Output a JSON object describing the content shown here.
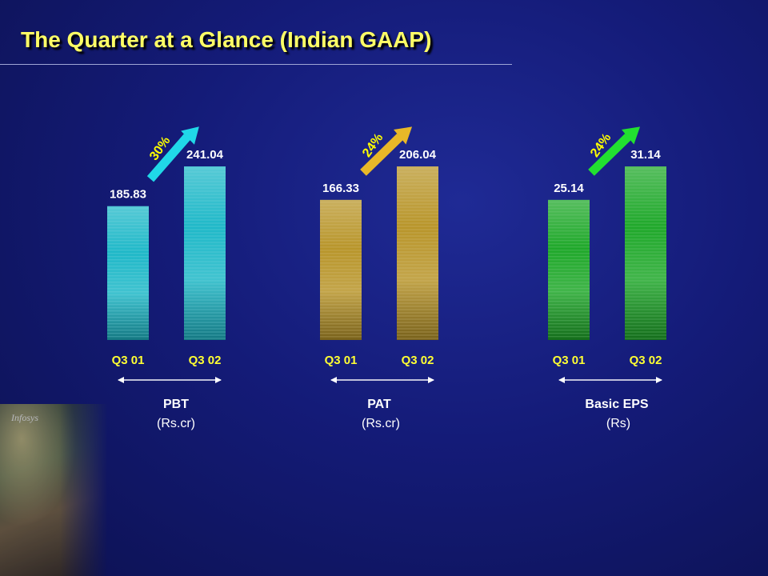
{
  "title": "The Quarter at a Glance (Indian GAAP)",
  "photo": {
    "logo_text": "Infosys"
  },
  "chart_data": [
    {
      "type": "bar",
      "metric": "PBT",
      "unit": "(Rs.cr)",
      "categories": [
        "Q3 01",
        "Q3 02"
      ],
      "values": [
        185.83,
        241.04
      ],
      "value_labels": [
        "185.83",
        "241.04"
      ],
      "growth": "30%",
      "bar_color": "#1fb8c8",
      "arrow_color": "#20d8e8",
      "growth_color": "#ffff00"
    },
    {
      "type": "bar",
      "metric": "PAT",
      "unit": "(Rs.cr)",
      "categories": [
        "Q3 01",
        "Q3 02"
      ],
      "values": [
        166.33,
        206.04
      ],
      "value_labels": [
        "166.33",
        "206.04"
      ],
      "growth": "24%",
      "bar_color": "#b8952a",
      "arrow_color": "#e8b828",
      "growth_color": "#ffff00"
    },
    {
      "type": "bar",
      "metric": "Basic EPS",
      "unit": "(Rs)",
      "categories": [
        "Q3 01",
        "Q3 02"
      ],
      "values": [
        25.14,
        31.14
      ],
      "value_labels": [
        "25.14",
        "31.14"
      ],
      "growth": "24%",
      "bar_color": "#1fa82a",
      "arrow_color": "#22e030",
      "growth_color": "#ffff00"
    }
  ]
}
